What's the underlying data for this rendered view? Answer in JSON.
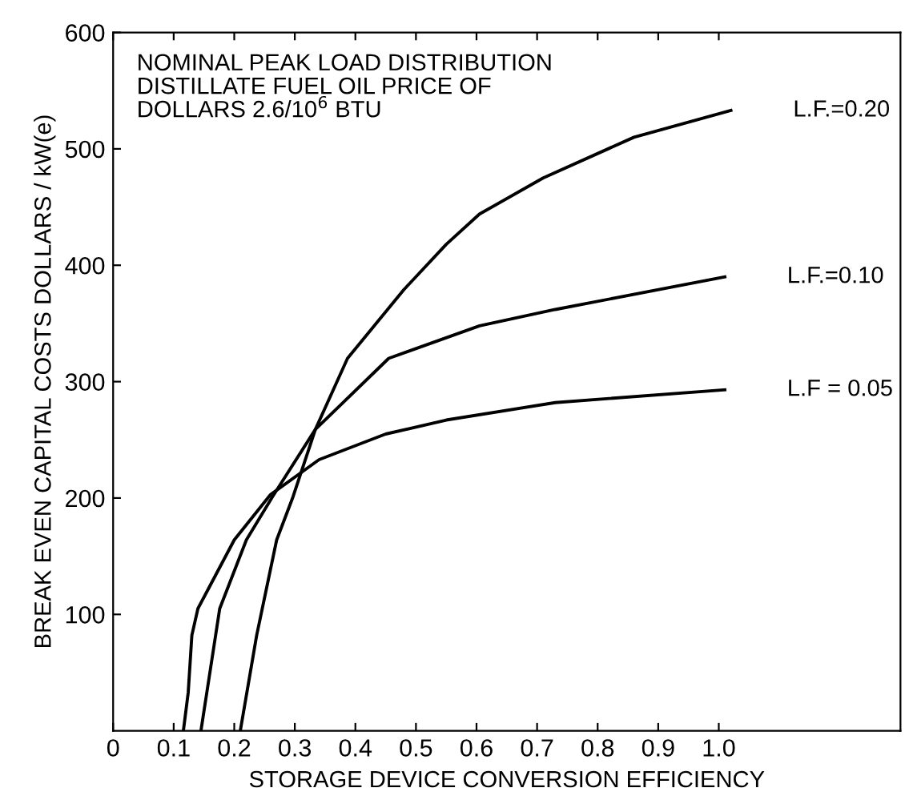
{
  "chart_data": {
    "type": "line",
    "xlabel": "STORAGE DEVICE CONVERSION EFFICIENCY",
    "ylabel": "BREAK EVEN CAPITAL COSTS DOLLARS / kW(e)",
    "annotations": [
      "NOMINAL PEAK LOAD DISTRIBUTION\nDISTILLATE FUEL OIL PRICE OF\nDOLLARS 2.6/10$^{6}$ BTU"
    ],
    "series": [
      {
        "name": "L.F.=0.20",
        "color": "#000000",
        "x": [
          0.21,
          0.237,
          0.27,
          0.297,
          0.334,
          0.387,
          0.48,
          0.55,
          0.605,
          0.71,
          0.86,
          1.02
        ],
        "values": [
          0,
          82,
          164,
          201,
          259,
          320,
          379,
          418,
          444,
          475,
          510,
          533
        ]
      },
      {
        "name": "L.F.=0.10",
        "color": "#000000",
        "x": [
          0.145,
          0.176,
          0.22,
          0.263,
          0.334,
          0.455,
          0.605,
          0.73,
          1.01
        ],
        "values": [
          0,
          105,
          164,
          201,
          259,
          320,
          348,
          362,
          390
        ]
      },
      {
        "name": "L.F = 0.05",
        "color": "#000000",
        "x": [
          0.116,
          0.124,
          0.13,
          0.14,
          0.2,
          0.26,
          0.34,
          0.45,
          0.55,
          0.73,
          1.01
        ],
        "values": [
          0,
          33,
          82,
          105,
          164,
          203,
          233,
          255,
          267,
          282,
          293
        ]
      }
    ],
    "xlim": [
      0,
      1.3
    ],
    "ylim": [
      0,
      600
    ],
    "xticks": [
      0,
      0.1,
      0.2,
      0.3,
      0.4,
      0.5,
      0.6,
      0.7,
      0.8,
      0.9,
      {
        "value": 1.0,
        "label": "1.0"
      }
    ],
    "yticks": [
      100,
      200,
      300,
      400,
      500,
      600
    ],
    "grid": false,
    "legend": false,
    "marker": "none",
    "line_style": "solid"
  }
}
